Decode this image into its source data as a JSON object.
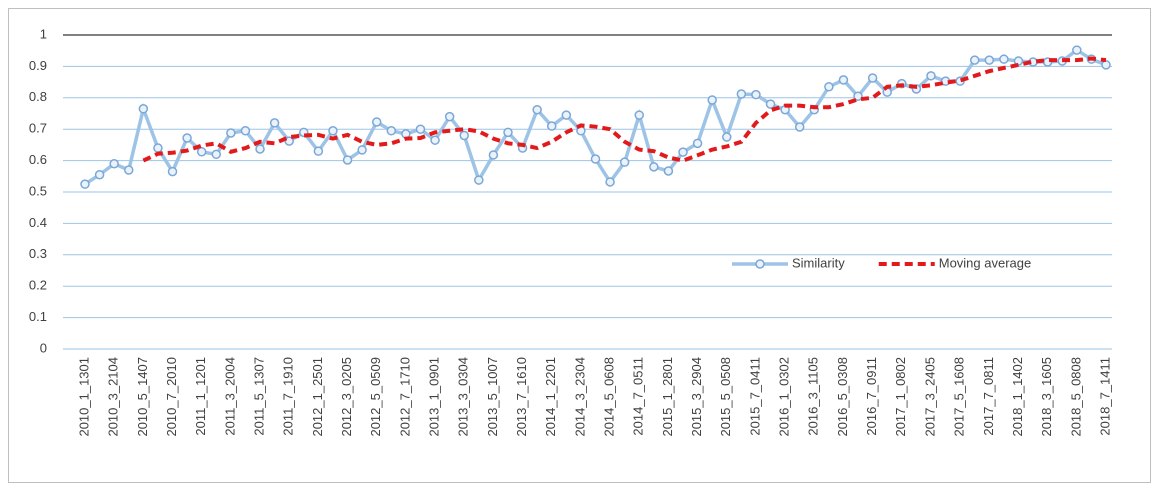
{
  "chart_data": {
    "type": "line",
    "categories": [
      "2010_1_1301",
      null,
      "2010_3_2104",
      null,
      "2010_5_1407",
      null,
      "2010_7_2010",
      null,
      "2011_1_1201",
      null,
      "2011_3_2004",
      null,
      "2011_5_1307",
      null,
      "2011_7_1910",
      null,
      "2012_1_2501",
      null,
      "2012_3_0205",
      null,
      "2012_5_0509",
      null,
      "2012_7_1710",
      null,
      "2013_1_0901",
      null,
      "2013_3_0304",
      null,
      "2013_5_1007",
      null,
      "2013_7_1610",
      null,
      "2014_1_2201",
      null,
      "2014_3_2304",
      null,
      "2014_5_0608",
      null,
      "2014_7_0511",
      null,
      "2015_1_2801",
      null,
      "2015_3_2904",
      null,
      "2015_5_0508",
      null,
      "2015_7_0411",
      null,
      "2016_1_0302",
      null,
      "2016_3_1105",
      null,
      "2016_5_0308",
      null,
      "2016_7_0911",
      null,
      "2017_1_0802",
      null,
      "2017_3_2405",
      null,
      "2017_5_1608",
      null,
      "2017_7_0811",
      null,
      "2018_1_1402",
      null,
      "2018_3_1605",
      null,
      "2018_5_0808",
      null,
      "2018_7_1411"
    ],
    "series": [
      {
        "name": "Similarity",
        "color": "#9dc3e6",
        "marker": "circle",
        "dashed": false,
        "values": [
          0.525,
          0.555,
          0.59,
          0.57,
          0.765,
          0.64,
          0.565,
          0.672,
          0.628,
          0.62,
          0.688,
          0.695,
          0.637,
          0.72,
          0.662,
          0.69,
          0.63,
          0.695,
          0.602,
          0.634,
          0.723,
          0.695,
          0.685,
          0.7,
          0.665,
          0.74,
          0.68,
          0.538,
          0.618,
          0.69,
          0.64,
          0.762,
          0.71,
          0.745,
          0.695,
          0.605,
          0.532,
          0.595,
          0.745,
          0.58,
          0.567,
          0.627,
          0.655,
          0.793,
          0.675,
          0.812,
          0.81,
          0.78,
          0.762,
          0.707,
          0.762,
          0.835,
          0.857,
          0.805,
          0.863,
          0.818,
          0.845,
          0.828,
          0.87,
          0.853,
          0.853,
          0.92,
          0.92,
          0.923,
          0.917,
          0.914,
          0.914,
          0.917,
          0.952,
          0.923,
          0.905
        ]
      },
      {
        "name": "Moving average",
        "color": "#e31a1c",
        "marker": "none",
        "dashed": true,
        "values": [
          null,
          null,
          null,
          null,
          0.6,
          0.622,
          0.625,
          0.632,
          0.648,
          0.655,
          0.628,
          0.64,
          0.66,
          0.655,
          0.675,
          0.68,
          0.682,
          0.67,
          0.682,
          0.66,
          0.65,
          0.655,
          0.67,
          0.672,
          0.69,
          0.695,
          0.7,
          0.693,
          0.67,
          0.655,
          0.65,
          0.64,
          0.66,
          0.69,
          0.712,
          0.708,
          0.7,
          0.66,
          0.635,
          0.63,
          0.61,
          0.6,
          0.617,
          0.635,
          0.645,
          0.66,
          0.72,
          0.76,
          0.775,
          0.775,
          0.77,
          0.77,
          0.78,
          0.795,
          0.8,
          0.835,
          0.84,
          0.835,
          0.84,
          0.848,
          0.855,
          0.87,
          0.885,
          0.895,
          0.905,
          0.915,
          0.92,
          0.92,
          0.92,
          0.925,
          0.92
        ]
      }
    ],
    "ylim": [
      0,
      1
    ],
    "yticks": [
      0,
      0.1,
      0.2,
      0.3,
      0.4,
      0.5,
      0.6,
      0.7,
      0.8,
      0.9,
      1
    ],
    "grid": true,
    "legend": "right"
  }
}
